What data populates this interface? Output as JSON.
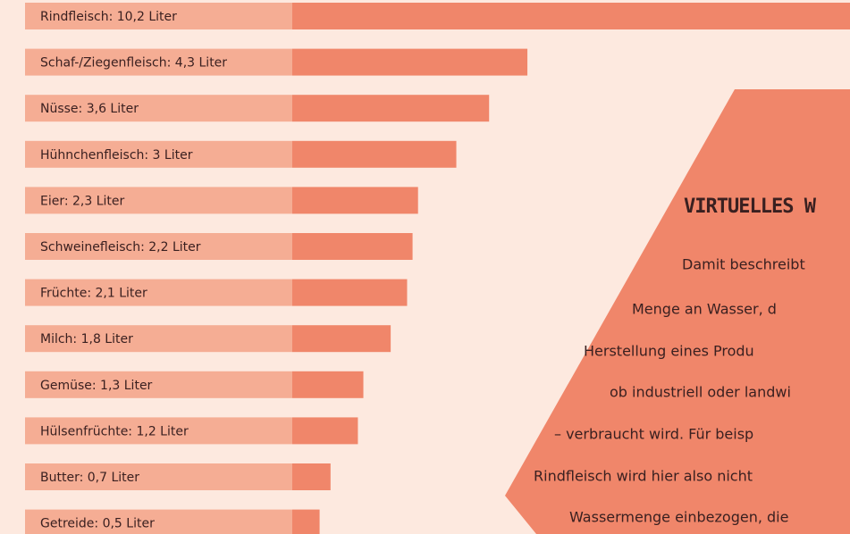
{
  "chart_data": {
    "type": "bar",
    "categories": [
      "Rindfleisch: 10,2 Liter",
      "Schaf-/Ziegenfleisch: 4,3 Liter",
      "Nüsse: 3,6 Liter",
      "Hühnchenfleisch: 3 Liter",
      "Eier: 2,3 Liter",
      "Schweinefleisch: 2,2 Liter",
      "Früchte: 2,1 Liter",
      "Milch: 1,8 Liter",
      "Gemüse: 1,3 Liter",
      "Hülsenfrüchte: 1,2 Liter",
      "Butter: 0,7 Liter",
      "Getreide: 0,5 Liter"
    ],
    "values": [
      10.2,
      4.3,
      3.6,
      3,
      2.3,
      2.2,
      2.1,
      1.8,
      1.3,
      1.2,
      0.7,
      0.5
    ],
    "color": "#f0866a",
    "label_color": "#f5ad94"
  },
  "callout": {
    "title": "VIRTUELLES W",
    "lines": [
      "Damit beschreibt",
      "Menge an Wasser, d",
      "Herstellung eines Produ",
      "ob industriell oder landwi",
      "– verbraucht wird. Für beisp",
      "Rindfleisch wird hier also nicht",
      "Wassermenge einbezogen, die"
    ]
  }
}
